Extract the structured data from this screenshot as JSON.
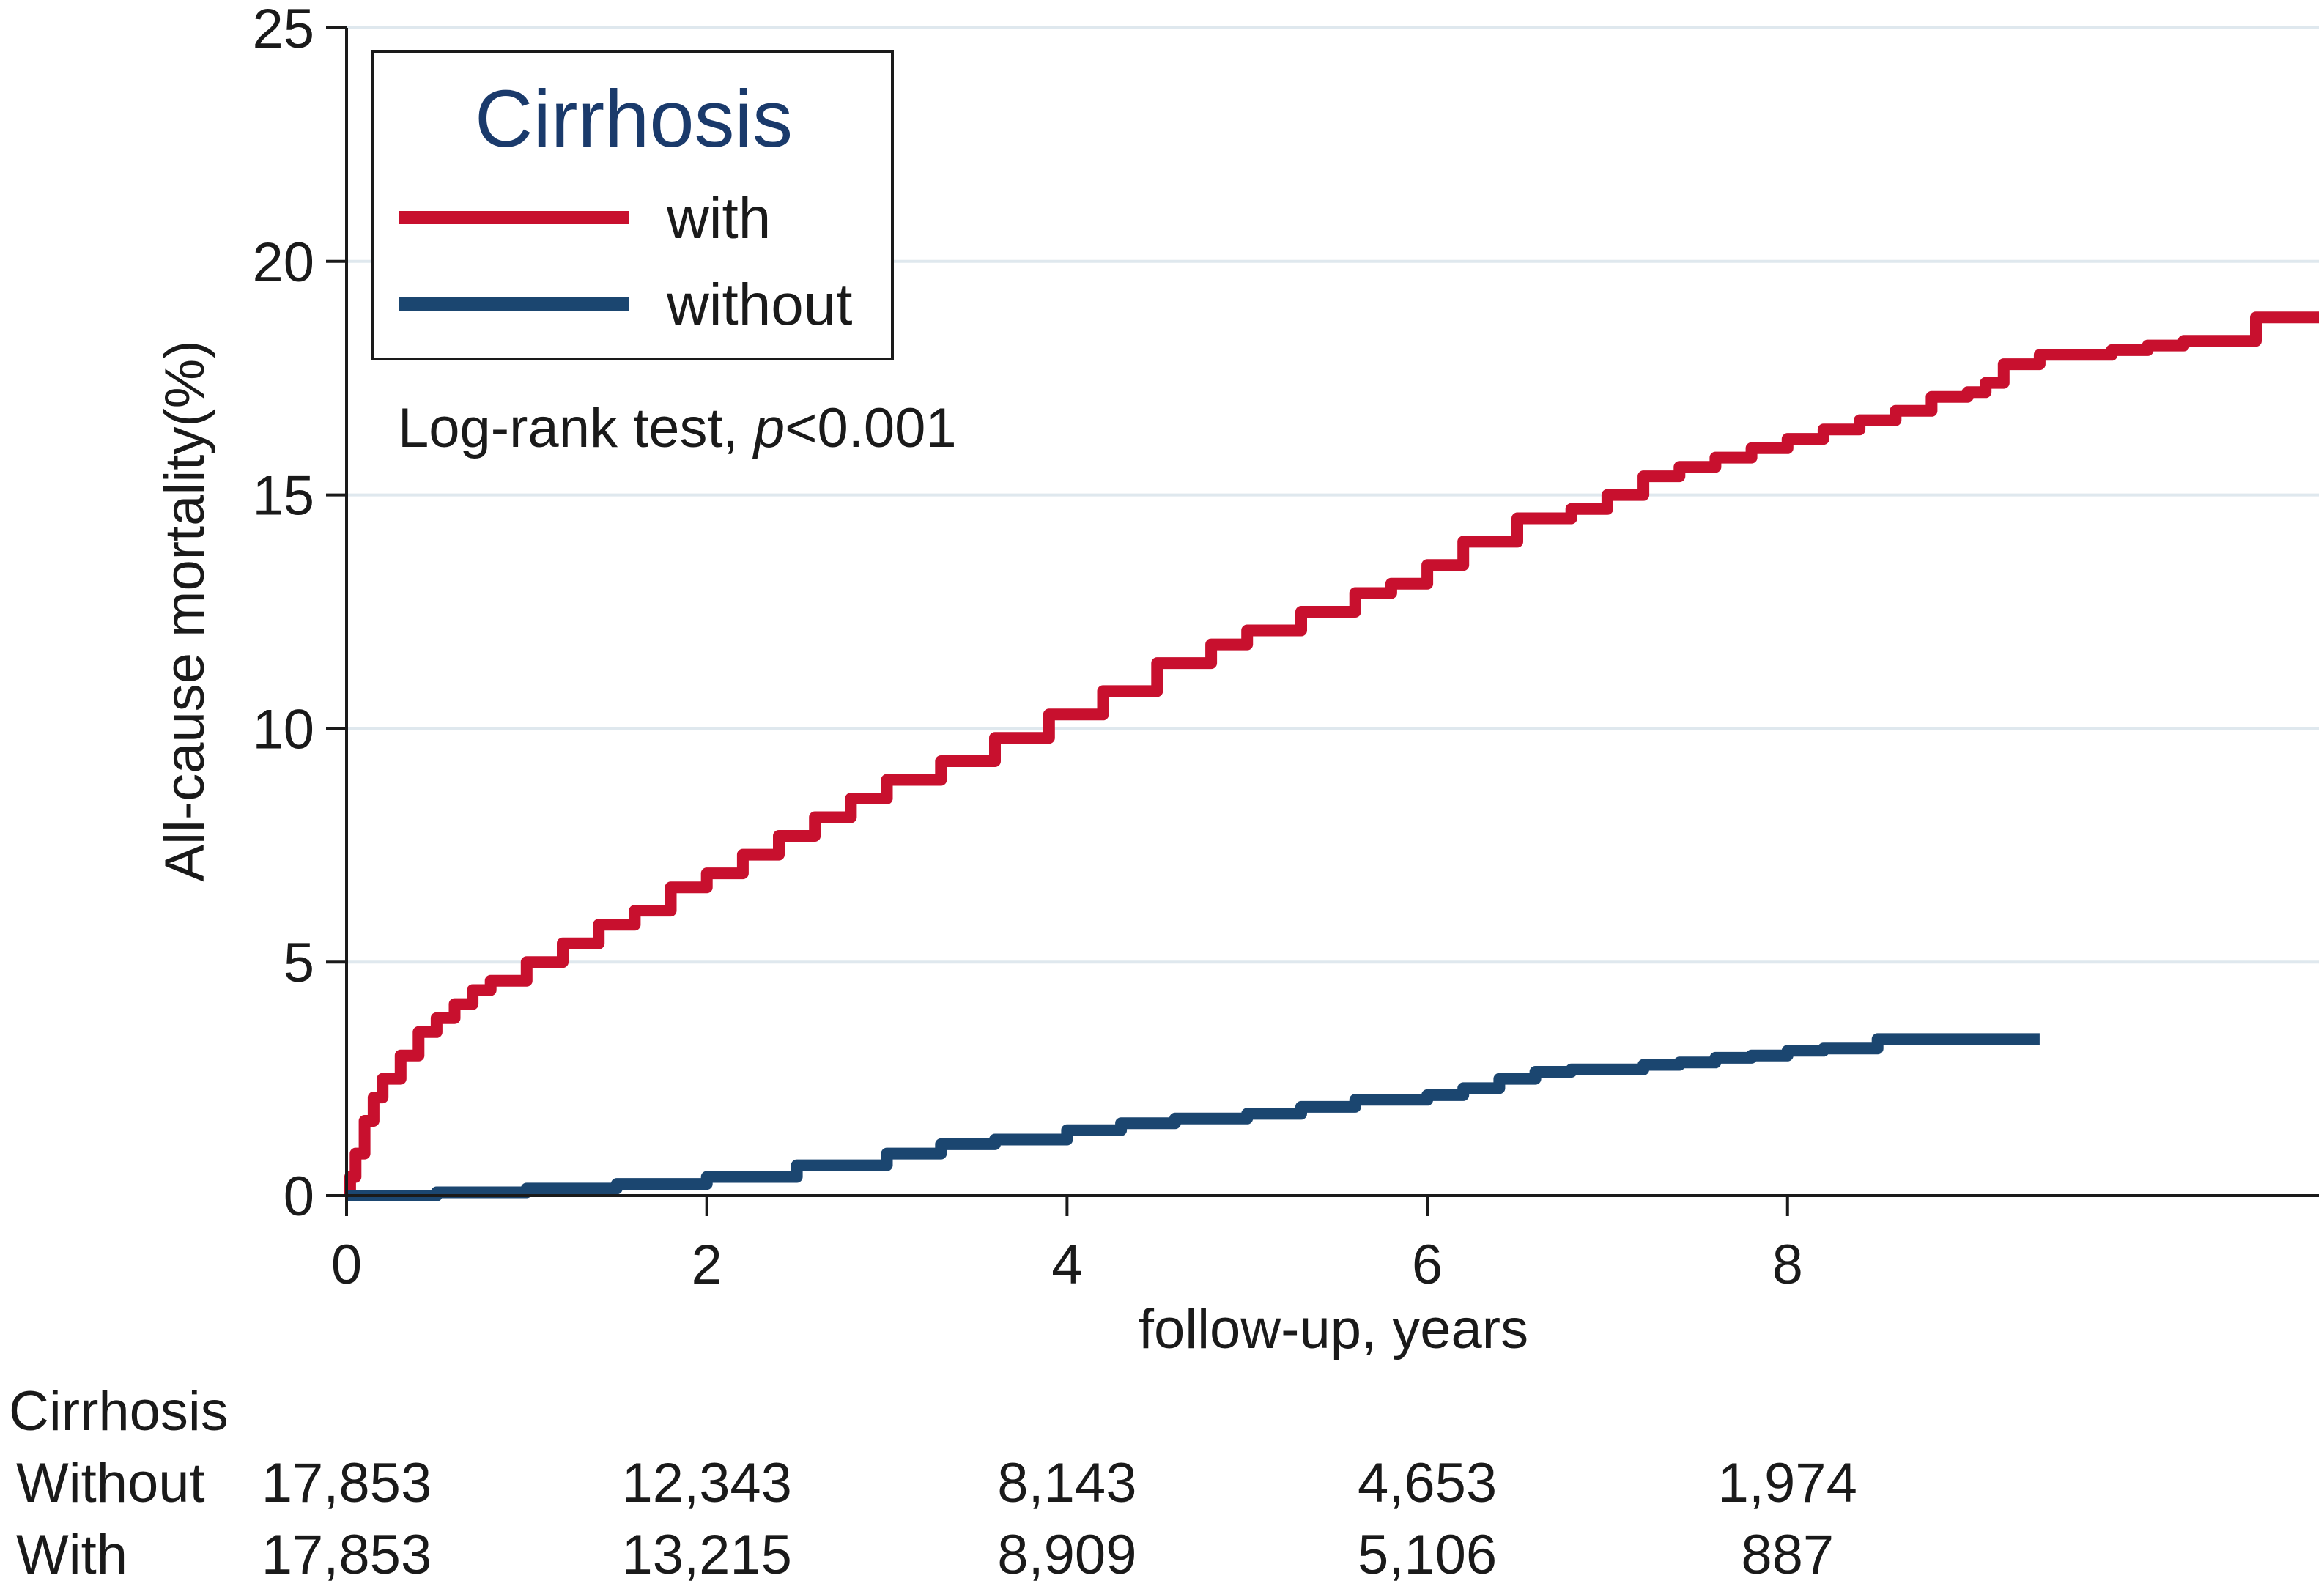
{
  "colors": {
    "with": "#c8102e",
    "without": "#1b4670",
    "grid": "#dfe8ee",
    "axis": "#1a1a1a"
  },
  "chart_data": {
    "type": "line",
    "step": true,
    "xlabel": "follow-up, years",
    "ylabel": "All-cause mortality(%)",
    "xlim": [
      0,
      10.95
    ],
    "ylim": [
      0,
      25
    ],
    "xticks": [
      0,
      2,
      4,
      6,
      8
    ],
    "yticks": [
      0,
      5,
      10,
      15,
      20,
      25
    ],
    "grid": true,
    "legend": {
      "title": "Cirrhosis",
      "position": "top-left",
      "entries": [
        {
          "label": "with",
          "color_key": "with"
        },
        {
          "label": "without",
          "color_key": "without"
        }
      ]
    },
    "annotation": {
      "text": "Log-rank test, ",
      "italic": "p",
      "rest": "<0.001"
    },
    "series": [
      {
        "name": "with",
        "color_key": "with",
        "x": [
          0,
          0.02,
          0.05,
          0.1,
          0.15,
          0.2,
          0.3,
          0.4,
          0.5,
          0.6,
          0.7,
          0.8,
          1.0,
          1.2,
          1.4,
          1.6,
          1.8,
          2.0,
          2.2,
          2.4,
          2.6,
          2.8,
          3.0,
          3.3,
          3.6,
          3.9,
          4.2,
          4.5,
          4.8,
          5.0,
          5.3,
          5.6,
          5.8,
          6.0,
          6.2,
          6.5,
          6.8,
          7.0,
          7.2,
          7.4,
          7.6,
          7.8,
          8.0,
          8.2,
          8.4,
          8.6,
          8.8,
          9.0,
          9.1,
          9.2,
          9.4,
          9.6,
          9.8,
          10.0,
          10.2,
          10.4,
          10.6,
          10.95
        ],
        "y": [
          0,
          0.4,
          0.9,
          1.6,
          2.1,
          2.5,
          3.0,
          3.5,
          3.8,
          4.1,
          4.4,
          4.6,
          5.0,
          5.4,
          5.8,
          6.1,
          6.6,
          6.9,
          7.3,
          7.7,
          8.1,
          8.5,
          8.9,
          9.3,
          9.8,
          10.3,
          10.8,
          11.4,
          11.8,
          12.1,
          12.5,
          12.9,
          13.1,
          13.5,
          14.0,
          14.5,
          14.7,
          15.0,
          15.4,
          15.6,
          15.8,
          16.0,
          16.2,
          16.4,
          16.6,
          16.8,
          17.1,
          17.2,
          17.4,
          17.8,
          18.0,
          18.0,
          18.1,
          18.2,
          18.3,
          18.3,
          18.8,
          18.8
        ]
      },
      {
        "name": "without",
        "color_key": "without",
        "x": [
          0,
          0.5,
          1.0,
          1.5,
          2.0,
          2.5,
          3.0,
          3.3,
          3.6,
          4.0,
          4.3,
          4.6,
          5.0,
          5.3,
          5.6,
          6.0,
          6.2,
          6.4,
          6.6,
          6.8,
          7.0,
          7.2,
          7.4,
          7.6,
          7.8,
          8.0,
          8.2,
          8.5,
          8.8,
          9.0,
          9.2,
          9.4
        ],
        "y": [
          0,
          0.07,
          0.15,
          0.25,
          0.4,
          0.65,
          0.9,
          1.1,
          1.2,
          1.4,
          1.55,
          1.65,
          1.75,
          1.9,
          2.05,
          2.15,
          2.3,
          2.5,
          2.65,
          2.7,
          2.7,
          2.8,
          2.85,
          2.95,
          3.0,
          3.1,
          3.15,
          3.35,
          3.35,
          3.35,
          3.35,
          3.35
        ]
      }
    ],
    "risk_table": {
      "header": "Cirrhosis",
      "rows": [
        {
          "label": "Without",
          "values": [
            "17,853",
            "12,343",
            "8,143",
            "4,653",
            "1,974"
          ]
        },
        {
          "label": "With",
          "values": [
            "17,853",
            "13,215",
            "8,909",
            "5,106",
            "887"
          ]
        }
      ],
      "times": [
        0,
        2,
        4,
        6,
        8
      ]
    }
  }
}
